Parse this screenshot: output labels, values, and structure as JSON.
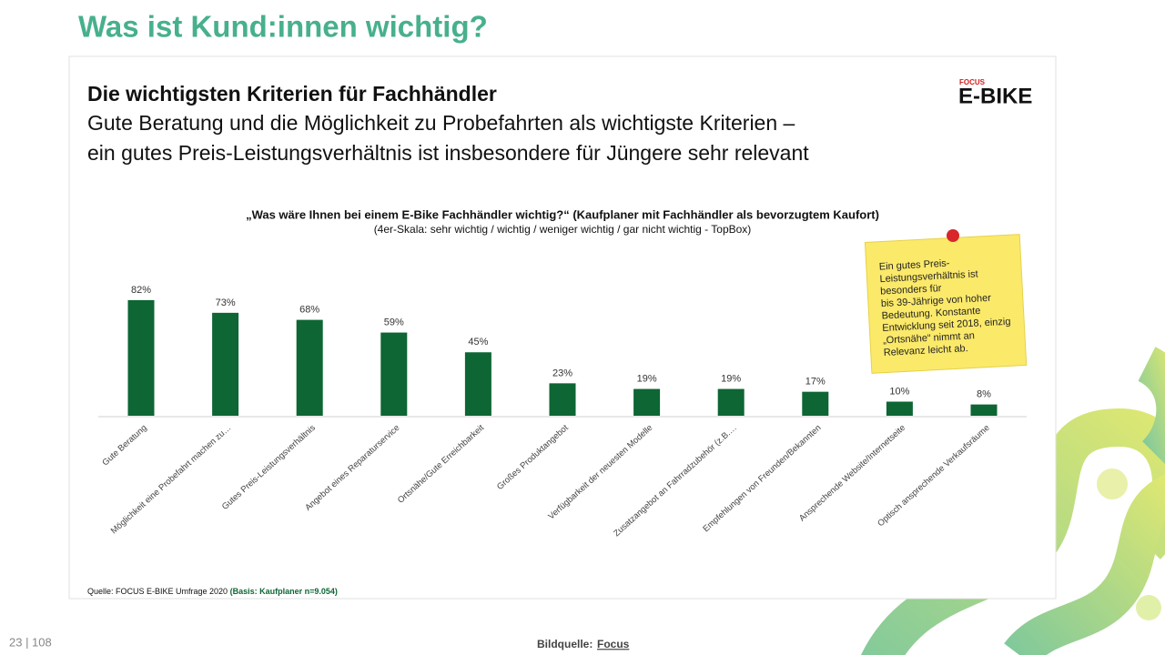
{
  "slide": {
    "title": "Was ist Kund:innen wichtig?",
    "page": "23 | 108",
    "image_credit_label": "Bildquelle:",
    "image_credit": "Focus"
  },
  "logo": {
    "brand": "FOCUS",
    "name": "E-BIKE"
  },
  "chart_data": {
    "type": "bar",
    "title": "Die wichtigsten Kriterien für Fachhändler",
    "subtitle_lines": [
      "Gute Beratung und die Möglichkeit zu Probefahrten als wichtigste Kriterien –",
      "ein gutes Preis-Leistungsverhältnis ist insbesondere für Jüngere sehr relevant"
    ],
    "question": "„Was wäre Ihnen bei einem E-Bike Fachhändler wichtig?“ (Kaufplaner mit Fachhändler als bevorzugtem Kaufort)",
    "scale_note": "(4er-Skala: sehr wichtig / wichtig / weniger wichtig / gar nicht wichtig - TopBox)",
    "categories": [
      "Gute Beratung",
      "Möglichkeit eine Probefahrt machen zu…",
      "Gutes Preis-Leistungsverhältnis",
      "Angebot eines Reparaturservice",
      "Ortsnähe/Gute Erreichbarkeit",
      "Großes Produktangebot",
      "Verfügbarkeit der neuesten Modelle",
      "Zusatzangebot  an Fahrradzubehör (z.B.…",
      "Empfehlungen von Freunden/Bekannten",
      "Ansprechende Website/Internetseite",
      "Optisch ansprechende Verkaufsräume"
    ],
    "values": [
      82,
      73,
      68,
      59,
      45,
      23,
      19,
      19,
      17,
      10,
      8
    ],
    "value_labels": [
      "82%",
      "73%",
      "68%",
      "59%",
      "45%",
      "23%",
      "19%",
      "19%",
      "17%",
      "10%",
      "8%"
    ],
    "color": "#0d6634",
    "note": [
      "Ein gutes Preis-",
      "Leistungsverhältnis ist",
      "besonders für",
      "bis 39-Jährige von hoher",
      "Bedeutung. Konstante",
      "Entwicklung seit 2018, einzig",
      "„Ortsnähe“ nimmt an",
      "Relevanz leicht ab."
    ],
    "source": "Quelle: FOCUS E-BIKE Umfrage 2020",
    "source_basis": "(Basis: Kaufplaner n=9.054)"
  }
}
